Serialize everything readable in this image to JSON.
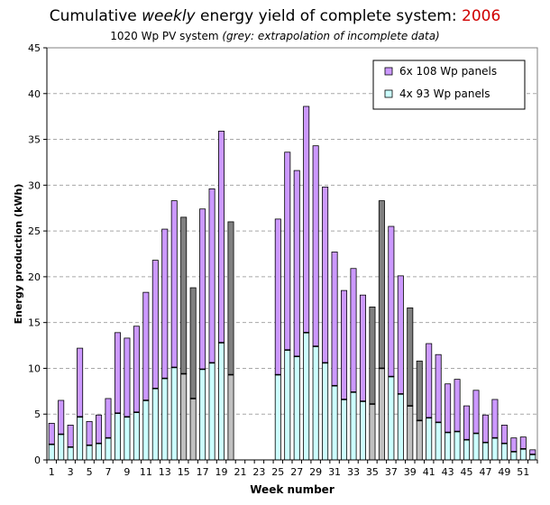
{
  "title": {
    "part1": "Cumulative ",
    "emph": "weekly",
    "part2": " energy yield of complete system: ",
    "year": "2006"
  },
  "subtitle": {
    "main": "1020 Wp PV system ",
    "note": "(grey: extrapolation of incomplete data)"
  },
  "colors": {
    "upper_series": "#cc99ff",
    "lower_series": "#ccffff",
    "extrapolated_upper": "#808080",
    "extrapolated_lower": "#c0c0c0",
    "title_year": "#d00000"
  },
  "chart_data": {
    "type": "bar",
    "stacked": true,
    "xlabel": "Week number",
    "ylabel": "Energy production (kWh)",
    "ylim": [
      0,
      45
    ],
    "yticks": [
      0,
      5,
      10,
      15,
      20,
      25,
      30,
      35,
      40,
      45
    ],
    "xtick_labels": [
      "1",
      "3",
      "5",
      "7",
      "9",
      "11",
      "13",
      "15",
      "17",
      "19",
      "21",
      "23",
      "25",
      "27",
      "29",
      "31",
      "33",
      "35",
      "37",
      "39",
      "41",
      "43",
      "45",
      "47",
      "49",
      "51"
    ],
    "grid": "horizontal dashed",
    "legend_position": "top-right",
    "legend": [
      "6x 108 Wp panels",
      "4x 93 Wp panels"
    ],
    "weeks": [
      1,
      2,
      3,
      4,
      5,
      6,
      7,
      8,
      9,
      10,
      11,
      12,
      13,
      14,
      15,
      16,
      17,
      18,
      19,
      20,
      21,
      22,
      23,
      24,
      25,
      26,
      27,
      28,
      29,
      30,
      31,
      32,
      33,
      34,
      35,
      36,
      37,
      38,
      39,
      40,
      41,
      42,
      43,
      44,
      45,
      46,
      47,
      48,
      49,
      50,
      51,
      52
    ],
    "series": [
      {
        "name": "4x 93 Wp panels",
        "values": [
          1.7,
          2.8,
          1.4,
          4.7,
          1.6,
          1.8,
          2.4,
          5.1,
          4.7,
          5.2,
          6.5,
          7.8,
          8.9,
          10.1,
          9.4,
          6.7,
          9.9,
          10.6,
          12.8,
          9.3,
          0,
          0,
          0,
          0,
          9.3,
          12.0,
          11.3,
          13.9,
          12.4,
          10.6,
          8.1,
          6.6,
          7.4,
          6.4,
          6.1,
          10.0,
          9.1,
          7.2,
          5.9,
          4.3,
          4.6,
          4.1,
          3.0,
          3.1,
          2.2,
          2.9,
          1.9,
          2.4,
          1.8,
          0.9,
          1.2,
          0.6
        ]
      },
      {
        "name": "6x 108 Wp panels",
        "values": [
          2.3,
          3.7,
          2.4,
          7.5,
          2.6,
          3.1,
          4.3,
          8.8,
          8.6,
          9.4,
          11.8,
          14.0,
          16.3,
          18.2,
          17.1,
          12.1,
          17.5,
          19.0,
          23.1,
          16.7,
          0,
          0,
          0,
          0,
          17.0,
          21.6,
          20.3,
          24.7,
          21.9,
          19.2,
          14.6,
          11.9,
          13.5,
          11.6,
          10.6,
          18.3,
          16.4,
          12.9,
          10.7,
          6.5,
          8.1,
          7.4,
          5.3,
          5.7,
          3.7,
          4.7,
          3.0,
          4.2,
          2.0,
          1.5,
          1.3,
          0.5
        ]
      }
    ],
    "extrapolated_weeks": [
      15,
      16,
      20,
      35,
      36,
      39,
      40
    ]
  }
}
